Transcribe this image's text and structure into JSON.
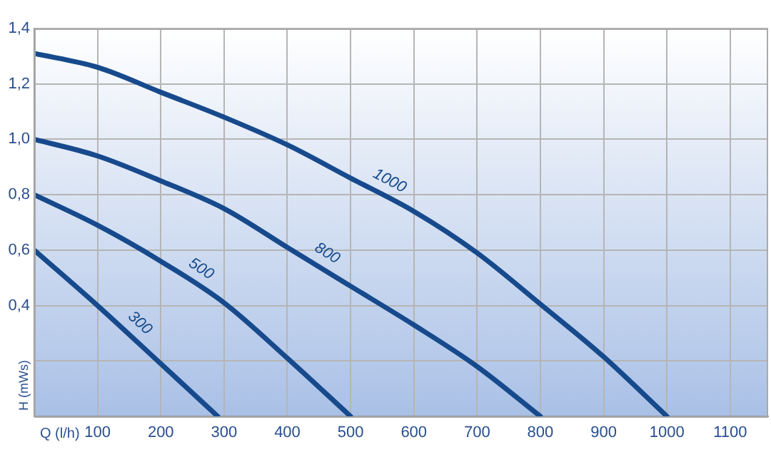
{
  "chart_data": {
    "type": "line",
    "xlabel": "Q (l/h)",
    "ylabel": "H (mWs)",
    "xlim": [
      0,
      1160
    ],
    "xticks": [
      100,
      200,
      300,
      400,
      500,
      600,
      700,
      800,
      900,
      1000,
      1100
    ],
    "ylim": [
      0,
      1.4
    ],
    "yticks": [
      {
        "value": 0.2,
        "label": null
      },
      {
        "value": 0.4,
        "label": "0,4"
      },
      {
        "value": 0.6,
        "label": "0,6"
      },
      {
        "value": 0.8,
        "label": "0,8"
      },
      {
        "value": 1.0,
        "label": "1,0"
      },
      {
        "value": 1.2,
        "label": "1,2"
      },
      {
        "value": 1.4,
        "label": "1,4"
      }
    ],
    "grid": true,
    "legend": false,
    "marker": "none",
    "line_style": "solid",
    "series": [
      {
        "name": "300",
        "color": "#174a8c",
        "x": [
          0,
          100,
          200,
          290
        ],
        "values": [
          0.6,
          0.4,
          0.19,
          0
        ]
      },
      {
        "name": "500",
        "color": "#174a8c",
        "x": [
          0,
          100,
          200,
          300,
          400,
          500
        ],
        "values": [
          0.8,
          0.69,
          0.56,
          0.41,
          0.21,
          0
        ]
      },
      {
        "name": "800",
        "color": "#174a8c",
        "x": [
          0,
          100,
          200,
          300,
          400,
          500,
          600,
          700,
          800
        ],
        "values": [
          1.0,
          0.94,
          0.85,
          0.75,
          0.61,
          0.47,
          0.33,
          0.18,
          0
        ]
      },
      {
        "name": "1000",
        "color": "#174a8c",
        "x": [
          0,
          100,
          200,
          300,
          400,
          500,
          600,
          700,
          800,
          900,
          1000
        ],
        "values": [
          1.31,
          1.26,
          1.17,
          1.08,
          0.98,
          0.86,
          0.74,
          0.59,
          0.405,
          0.215,
          0
        ]
      }
    ]
  }
}
